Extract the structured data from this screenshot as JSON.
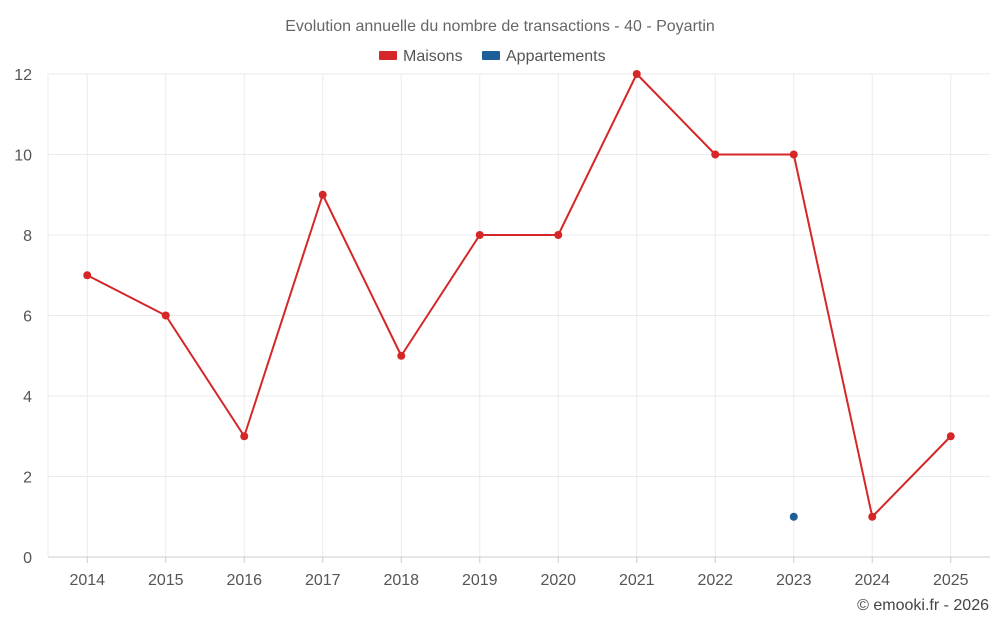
{
  "chart_data": {
    "type": "line",
    "title": "Evolution annuelle du nombre de transactions - 40 - Poyartin",
    "categories": [
      "2014",
      "2015",
      "2016",
      "2017",
      "2018",
      "2019",
      "2020",
      "2021",
      "2022",
      "2023",
      "2024",
      "2025"
    ],
    "series": [
      {
        "name": "Maisons",
        "color": "#d62728",
        "values": [
          7,
          6,
          3,
          9,
          5,
          8,
          8,
          12,
          10,
          10,
          1,
          3
        ]
      },
      {
        "name": "Appartements",
        "color": "#1f5f99",
        "values": [
          null,
          null,
          null,
          null,
          null,
          null,
          null,
          null,
          null,
          1,
          null,
          null
        ]
      }
    ],
    "ylim": [
      0,
      12
    ],
    "yticks": [
      0,
      2,
      4,
      6,
      8,
      10,
      12
    ],
    "grid": true,
    "legend": "top-center",
    "credit": "© emooki.fr - 2026"
  }
}
